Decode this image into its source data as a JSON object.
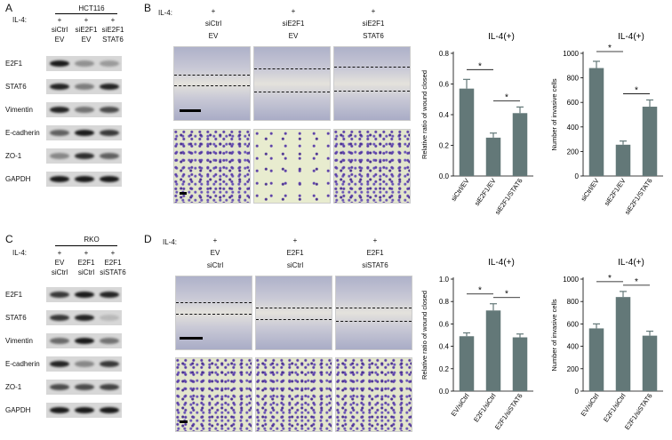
{
  "panels": {
    "A": {
      "letter": "A",
      "cell_line": "HCT116",
      "il4_label": "IL-4:",
      "il4_values": [
        "+",
        "+",
        "+"
      ],
      "lane_line1": [
        "siCtrl",
        "siE2F1",
        "siE2F1"
      ],
      "lane_line2": [
        "EV",
        "EV",
        "STAT6"
      ],
      "proteins": [
        "E2F1",
        "STAT6",
        "Vimentin",
        "E-cadherin",
        "ZO-1",
        "GAPDH"
      ]
    },
    "B": {
      "letter": "B",
      "il4_label": "IL-4:",
      "il4_values": [
        "+",
        "+",
        "+"
      ],
      "cond_line1": [
        "siCtrl",
        "siE2F1",
        "siE2F1"
      ],
      "cond_line2": [
        "EV",
        "EV",
        "STAT6"
      ]
    },
    "C": {
      "letter": "C",
      "cell_line": "RKO",
      "il4_label": "IL-4:",
      "il4_values": [
        "+",
        "+",
        "+"
      ],
      "lane_line1": [
        "EV",
        "E2F1",
        "E2F1"
      ],
      "lane_line2": [
        "siCtrl",
        "siCtrl",
        "siSTAT6"
      ],
      "proteins": [
        "E2F1",
        "STAT6",
        "Vimentin",
        "E-cadherin",
        "ZO-1",
        "GAPDH"
      ]
    },
    "D": {
      "letter": "D",
      "il4_label": "IL-4:",
      "il4_values": [
        "+",
        "+",
        "+"
      ],
      "cond_line1": [
        "EV",
        "E2F1",
        "E2F1"
      ],
      "cond_line2": [
        "siCtrl",
        "siCtrl",
        "siSTAT6"
      ]
    }
  },
  "chart_data": [
    {
      "type": "bar",
      "title": "IL-4(+)",
      "ylabel": "Relative ratio of wound closed",
      "categories": [
        "siCtrl/EV",
        "siE2F1/EV",
        "siE2F1/STAT6"
      ],
      "values": [
        0.57,
        0.25,
        0.41
      ],
      "errors": [
        0.06,
        0.03,
        0.04
      ],
      "ylim": [
        0,
        0.8
      ],
      "yticks": [
        "0.0",
        "0.2",
        "0.4",
        "0.6",
        "0.8"
      ],
      "significance": [
        "*",
        "*"
      ],
      "bar_color": "#637878"
    },
    {
      "type": "bar",
      "title": "IL-4(+)",
      "ylabel": "Number of invasive cells",
      "categories": [
        "siCtrl/EV",
        "siE2F1/EV",
        "siE2F1/STAT6"
      ],
      "values": [
        880,
        255,
        565
      ],
      "errors": [
        55,
        30,
        55
      ],
      "ylim": [
        0,
        1000
      ],
      "yticks": [
        "0",
        "200",
        "400",
        "600",
        "800",
        "1000"
      ],
      "significance": [
        "*",
        "*"
      ],
      "bar_color": "#637878"
    },
    {
      "type": "bar",
      "title": "IL-4(+)",
      "ylabel": "Relative ratio of wound closed",
      "categories": [
        "EV/siCtrl",
        "E2F1/siCtrl",
        "E2F1/siSTAT6"
      ],
      "values": [
        0.49,
        0.72,
        0.48
      ],
      "errors": [
        0.03,
        0.06,
        0.03
      ],
      "ylim": [
        0,
        1.0
      ],
      "yticks": [
        "0.0",
        "0.2",
        "0.4",
        "0.6",
        "0.8",
        "1.0"
      ],
      "significance": [
        "*",
        "*"
      ],
      "bar_color": "#637878"
    },
    {
      "type": "bar",
      "title": "IL-4(+)",
      "ylabel": "Number of invasive cells",
      "categories": [
        "EV/siCtrl",
        "E2F1/siCtrl",
        "E2F1/siSTAT6"
      ],
      "values": [
        560,
        840,
        495
      ],
      "errors": [
        40,
        50,
        40
      ],
      "ylim": [
        0,
        1000
      ],
      "yticks": [
        "0",
        "200",
        "400",
        "600",
        "800",
        "1000"
      ],
      "significance": [
        "*",
        "*"
      ],
      "bar_color": "#637878"
    }
  ]
}
